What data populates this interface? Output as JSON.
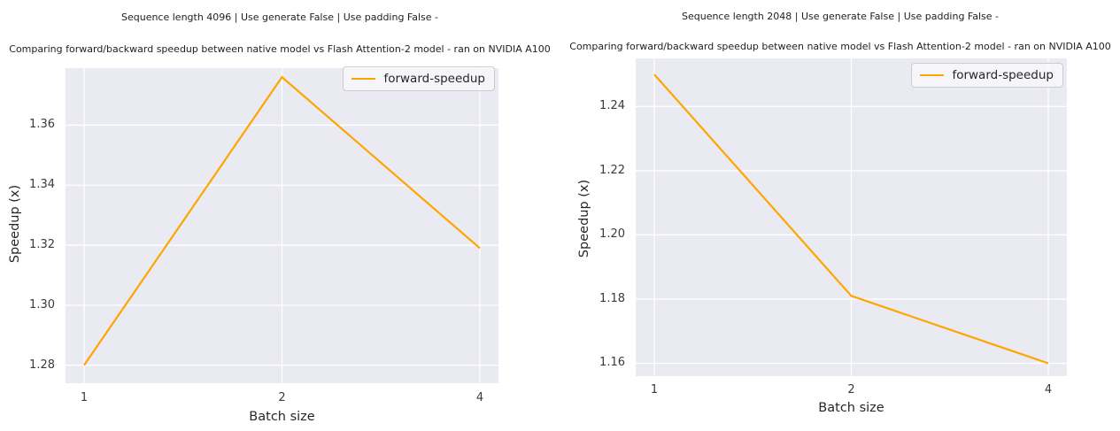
{
  "colors": {
    "line": "#ffa500",
    "plot_background": "#eaeaf2",
    "gridline": "#ffffff",
    "text": "#262626"
  },
  "chart_data": [
    {
      "type": "line",
      "title_line1": "Sequence length 4096 | Use generate False | Use padding False -",
      "title_line2": "Comparing forward/backward speedup between native model vs Flash Attention-2 model - ran on NVIDIA A100",
      "xlabel": "Batch size",
      "ylabel": "Speedup (x)",
      "x": [
        1,
        2,
        4
      ],
      "x_scale": "log2-even-spacing",
      "series": [
        {
          "name": "forward-speedup",
          "color": "#ffa500",
          "values": [
            1.28,
            1.376,
            1.319
          ]
        }
      ],
      "yticks": [
        1.28,
        1.3,
        1.32,
        1.34,
        1.36
      ],
      "ylim": [
        1.274,
        1.379
      ],
      "grid": true,
      "legend_position": "upper right"
    },
    {
      "type": "line",
      "title_line1": "Sequence length 2048 | Use generate False | Use padding False -",
      "title_line2": "Comparing forward/backward speedup between native model vs Flash Attention-2 model - ran on NVIDIA A100",
      "xlabel": "Batch size",
      "ylabel": "Speedup (x)",
      "x": [
        1,
        2,
        4
      ],
      "x_scale": "log2-even-spacing",
      "series": [
        {
          "name": "forward-speedup",
          "color": "#ffa500",
          "values": [
            1.25,
            1.181,
            1.16
          ]
        }
      ],
      "yticks": [
        1.16,
        1.18,
        1.2,
        1.22,
        1.24
      ],
      "ylim": [
        1.156,
        1.255
      ],
      "grid": true,
      "legend_position": "upper right"
    }
  ]
}
